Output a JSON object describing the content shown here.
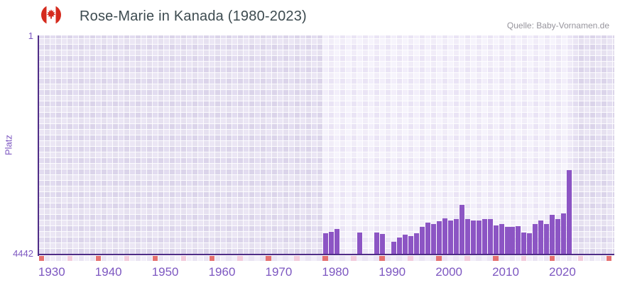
{
  "header": {
    "title": "Rose-Marie in Kanada (1980-2023)",
    "source": "Quelle: Baby-Vornamen.de",
    "flag": "canada-flag-icon"
  },
  "chart_data": {
    "type": "bar",
    "title": "Rose-Marie in Kanada (1980-2023)",
    "ylabel": "Platz",
    "xlabel": "",
    "grid": true,
    "legend": false,
    "y_axis": {
      "min": 1,
      "max": 4442,
      "inverted": true,
      "tick_labels": [
        "1",
        "4442"
      ]
    },
    "x_axis": {
      "tick_labels": [
        "1930",
        "1940",
        "1950",
        "1960",
        "1970",
        "1980",
        "1990",
        "2000",
        "2010",
        "2020"
      ],
      "range": [
        1929,
        2031
      ]
    },
    "highlight_range": {
      "from": 1980,
      "to": 2023
    },
    "series": [
      {
        "year": 1980,
        "rank": 4005
      },
      {
        "year": 1981,
        "rank": 3985
      },
      {
        "year": 1982,
        "rank": 3920
      },
      {
        "year": 1986,
        "rank": 4000
      },
      {
        "year": 1989,
        "rank": 3995
      },
      {
        "year": 1990,
        "rank": 4025
      },
      {
        "year": 1992,
        "rank": 4185
      },
      {
        "year": 1993,
        "rank": 4100
      },
      {
        "year": 1994,
        "rank": 4040
      },
      {
        "year": 1995,
        "rank": 4070
      },
      {
        "year": 1996,
        "rank": 4015
      },
      {
        "year": 1997,
        "rank": 3880
      },
      {
        "year": 1998,
        "rank": 3800
      },
      {
        "year": 1999,
        "rank": 3820
      },
      {
        "year": 2000,
        "rank": 3765
      },
      {
        "year": 2001,
        "rank": 3710
      },
      {
        "year": 2002,
        "rank": 3755
      },
      {
        "year": 2003,
        "rank": 3720
      },
      {
        "year": 2004,
        "rank": 3440
      },
      {
        "year": 2005,
        "rank": 3720
      },
      {
        "year": 2006,
        "rank": 3745
      },
      {
        "year": 2007,
        "rank": 3745
      },
      {
        "year": 2008,
        "rank": 3720
      },
      {
        "year": 2009,
        "rank": 3730
      },
      {
        "year": 2010,
        "rank": 3855
      },
      {
        "year": 2011,
        "rank": 3820
      },
      {
        "year": 2012,
        "rank": 3880
      },
      {
        "year": 2013,
        "rank": 3880
      },
      {
        "year": 2014,
        "rank": 3870
      },
      {
        "year": 2015,
        "rank": 3990
      },
      {
        "year": 2016,
        "rank": 4005
      },
      {
        "year": 2017,
        "rank": 3830
      },
      {
        "year": 2018,
        "rank": 3755
      },
      {
        "year": 2019,
        "rank": 3830
      },
      {
        "year": 2020,
        "rank": 3635
      },
      {
        "year": 2021,
        "rank": 3730
      },
      {
        "year": 2022,
        "rank": 3605
      },
      {
        "year": 2023,
        "rank": 2725
      }
    ],
    "timeline_markers": {
      "decade_years_color": "#e57070",
      "half_decade_years_color": "#f3cbdc"
    }
  },
  "colors": {
    "bar": "#8c55c4",
    "axis_line": "#4f2d87",
    "axis_text": "#7d57c1",
    "title_text": "#3d4b50",
    "source_text": "#96949c",
    "flag_red": "#d52b1e",
    "decade_marker": "#e57070",
    "half_decade_marker": "#f3cbdc"
  }
}
